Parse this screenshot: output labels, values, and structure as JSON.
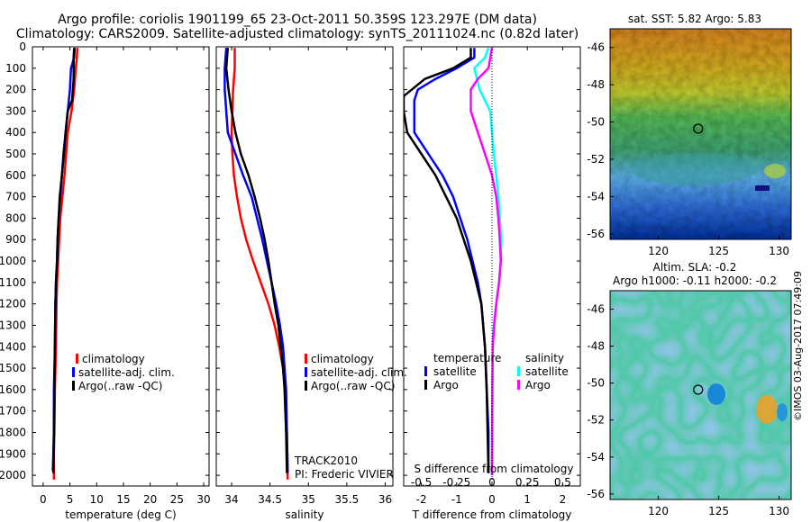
{
  "header": {
    "line1": "Argo profile: coriolis 1901199_65 23-Oct-2011 50.359S 123.297E (DM data)",
    "line2": "Climatology: CARS2009. Satellite-adjusted climatology: synTS_20111024.nc (0.82d later)"
  },
  "colors": {
    "climatology": "#ff0000",
    "satellite": "#0000ff",
    "argo": "#000000",
    "salinity_satellite": "#00ffff",
    "salinity_argo": "#ff00ff"
  },
  "legend": {
    "climatology": "climatology",
    "satellite_adj": "satellite-adj. clim.",
    "argo": "Argo(..raw -QC)",
    "temperature": "temperature",
    "salinity": "salinity",
    "satellite": "satellite",
    "argo_short": "Argo"
  },
  "track_note": "TRACK2010",
  "pi_note": "PI: Frederic VIVIER",
  "sst_title": "sat. SST: 5.82 Argo: 5.83",
  "sla_title1": "Altim. SLA: -0.2",
  "sla_title2": "Argo h1000: -0.11 h2000: -0.2",
  "stamp": "©IMOS 03-Aug-2017 07:49:09",
  "chart_data": [
    {
      "type": "line",
      "xlabel": "temperature (deg C)",
      "ylabel": "",
      "xlim": [
        -2,
        31
      ],
      "ylim": [
        2050,
        0
      ],
      "xticks": [
        0,
        5,
        10,
        15,
        20,
        25,
        30
      ],
      "yticks": [
        0,
        100,
        200,
        300,
        400,
        500,
        600,
        700,
        800,
        900,
        1000,
        1100,
        1200,
        1300,
        1400,
        1500,
        1600,
        1700,
        1800,
        1900,
        2000
      ],
      "series": [
        {
          "name": "climatology",
          "color": "#ff0000",
          "x": [
            6.4,
            6.3,
            6.1,
            5.8,
            5.3,
            4.6,
            4.3,
            4.0,
            3.6,
            3.2,
            3.0,
            2.8,
            2.6,
            2.5,
            2.4,
            2.3,
            2.2,
            2.1,
            2.0,
            2.0
          ],
          "y": [
            5,
            50,
            100,
            200,
            300,
            400,
            500,
            600,
            700,
            800,
            900,
            1000,
            1100,
            1200,
            1400,
            1500,
            1600,
            1800,
            1900,
            2020
          ]
        },
        {
          "name": "satellite-adj. clim.",
          "color": "#0000ff",
          "x": [
            5.9,
            5.8,
            5.2,
            5.0,
            4.6,
            4.2,
            3.8,
            3.5,
            3.2,
            2.9,
            2.7,
            2.6,
            2.4,
            2.3,
            2.2,
            2.1,
            2.0,
            2.0,
            1.9,
            1.8
          ],
          "y": [
            5,
            50,
            100,
            200,
            300,
            400,
            500,
            600,
            700,
            800,
            900,
            1000,
            1100,
            1200,
            1400,
            1500,
            1600,
            1800,
            1900,
            1980
          ]
        },
        {
          "name": "Argo(..raw -QC)",
          "color": "#000000",
          "x": [
            5.8,
            5.7,
            5.7,
            5.4,
            4.6,
            4.2,
            3.9,
            3.5,
            3.1,
            2.9,
            2.7,
            2.6,
            2.4,
            2.3,
            2.2,
            2.1,
            2.0,
            1.9
          ],
          "y": [
            5,
            50,
            150,
            250,
            300,
            400,
            500,
            600,
            700,
            800,
            900,
            1000,
            1100,
            1200,
            1400,
            1600,
            1800,
            1990
          ]
        }
      ]
    },
    {
      "type": "line",
      "xlabel": "salinity",
      "ylabel": "",
      "xlim": [
        33.8,
        36.1
      ],
      "ylim": [
        2050,
        0
      ],
      "xticks": [
        34,
        34.5,
        35,
        35.5,
        36
      ],
      "series": [
        {
          "name": "climatology",
          "color": "#ff0000",
          "x": [
            34.04,
            34.04,
            34.02,
            34.01,
            34.0,
            34.01,
            34.03,
            34.07,
            34.12,
            34.19,
            34.28,
            34.38,
            34.48,
            34.56,
            34.62,
            34.67,
            34.7,
            34.72,
            34.73
          ],
          "y": [
            5,
            100,
            200,
            300,
            400,
            500,
            600,
            700,
            800,
            900,
            1000,
            1100,
            1200,
            1300,
            1400,
            1500,
            1600,
            1800,
            2020
          ]
        },
        {
          "name": "satellite-adj. clim.",
          "color": "#0000ff",
          "x": [
            33.93,
            33.91,
            33.91,
            33.93,
            33.95,
            34.05,
            34.15,
            34.26,
            34.33,
            34.4,
            34.46,
            34.52,
            34.58,
            34.63,
            34.67,
            34.69,
            34.71,
            34.72,
            34.73
          ],
          "y": [
            5,
            100,
            200,
            300,
            400,
            500,
            600,
            700,
            800,
            900,
            1000,
            1100,
            1200,
            1300,
            1400,
            1500,
            1600,
            1800,
            1990
          ]
        },
        {
          "name": "Argo(..raw -QC)",
          "color": "#000000",
          "x": [
            33.95,
            33.93,
            33.96,
            34.0,
            34.05,
            34.12,
            34.22,
            34.3,
            34.37,
            34.43,
            34.48,
            34.52,
            34.56,
            34.61,
            34.64,
            34.67,
            34.69,
            34.71,
            34.72
          ],
          "y": [
            5,
            100,
            200,
            300,
            400,
            500,
            600,
            700,
            800,
            900,
            1000,
            1100,
            1200,
            1300,
            1400,
            1500,
            1600,
            1800,
            1990
          ]
        }
      ]
    },
    {
      "type": "line",
      "xlabel": "T difference from climatology",
      "ylabel": "",
      "xlim": [
        -2.5,
        2.5
      ],
      "ylim": [
        2050,
        0
      ],
      "xticks": [
        -2,
        -1,
        0,
        1,
        2
      ],
      "secondary_x_label": "S difference from climatology",
      "secondary_xticks": [
        "-0.5",
        "-0.25",
        "0",
        "0.25",
        "0.5"
      ],
      "series": [
        {
          "name": "temperature satellite",
          "color": "#0000ff",
          "x": [
            -0.5,
            -0.5,
            -1.0,
            -1.6,
            -2.1,
            -2.2,
            -2.2,
            -1.8,
            -1.4,
            -1.1,
            -0.9,
            -0.7,
            -0.55,
            -0.4,
            -0.3,
            -0.2,
            -0.15,
            -0.1,
            -0.1
          ],
          "y": [
            5,
            50,
            100,
            150,
            200,
            250,
            400,
            500,
            600,
            700,
            800,
            900,
            1000,
            1100,
            1200,
            1400,
            1600,
            1800,
            1990
          ]
        },
        {
          "name": "temperature Argo",
          "color": "#000000",
          "x": [
            -0.6,
            -0.6,
            -1.1,
            -1.9,
            -2.5,
            -2.5,
            -2.4,
            -2.0,
            -1.6,
            -1.3,
            -1.0,
            -0.8,
            -0.6,
            -0.45,
            -0.3,
            -0.2,
            -0.15,
            -0.1
          ],
          "y": [
            5,
            50,
            100,
            150,
            230,
            300,
            400,
            500,
            600,
            700,
            800,
            900,
            1000,
            1100,
            1200,
            1400,
            1600,
            1990
          ]
        },
        {
          "name": "salinity satellite",
          "color": "#00ffff",
          "x": [
            -0.1,
            -0.2,
            -0.5,
            -0.35,
            -0.05,
            0.0,
            0.05,
            0.12,
            0.18,
            0.22,
            0.26,
            0.25,
            0.2,
            0.12,
            0.05,
            0.02,
            0.01,
            0.0
          ],
          "y": [
            5,
            50,
            100,
            200,
            300,
            400,
            500,
            600,
            700,
            800,
            900,
            1000,
            1100,
            1200,
            1300,
            1400,
            1600,
            2000
          ]
        },
        {
          "name": "salinity Argo",
          "color": "#ff00ff",
          "x": [
            0.0,
            -0.1,
            -0.4,
            -0.6,
            -0.6,
            -0.4,
            -0.2,
            0.0,
            0.12,
            0.18,
            0.22,
            0.25,
            0.2,
            0.12,
            0.06,
            0.02,
            0.01,
            0.0
          ],
          "y": [
            5,
            100,
            150,
            200,
            300,
            400,
            500,
            600,
            700,
            800,
            900,
            1000,
            1100,
            1200,
            1300,
            1400,
            1600,
            2000
          ]
        }
      ]
    },
    {
      "type": "heatmap",
      "title": "sat. SST: 5.82 Argo: 5.83",
      "xlim": [
        116,
        131
      ],
      "ylim": [
        -56.3,
        -45
      ],
      "xticks": [
        120,
        125,
        130
      ],
      "yticks": [
        -46,
        -48,
        -50,
        -52,
        -54,
        -56
      ],
      "marker": {
        "lon": 123.297,
        "lat": -50.359
      }
    },
    {
      "type": "heatmap",
      "title": "Altim. SLA: -0.2",
      "subtitle": "Argo h1000: -0.11 h2000: -0.2",
      "xlim": [
        116,
        131
      ],
      "ylim": [
        -56.3,
        -45
      ],
      "xticks": [
        120,
        125,
        130
      ],
      "yticks": [
        -46,
        -48,
        -50,
        -52,
        -54,
        -56
      ],
      "marker": {
        "lon": 123.297,
        "lat": -50.359
      }
    }
  ]
}
